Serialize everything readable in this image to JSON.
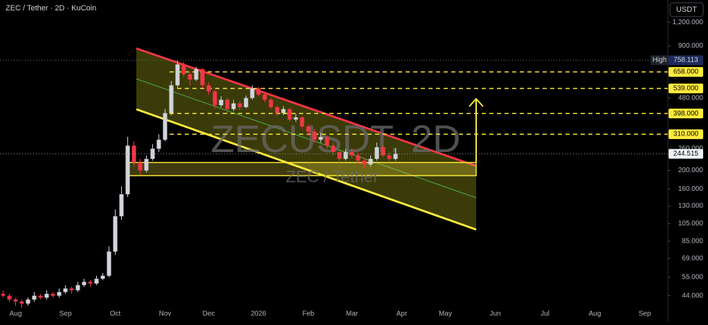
{
  "chart_data": {
    "type": "candlestick",
    "title": "ZEC / Tether · 2D · KuCoin",
    "watermark": "ZECUSDT, 2D",
    "watermark_sub": "ZEC / Tether",
    "currency": "USDT",
    "high_label": "High",
    "log_scale": true,
    "grid": false,
    "up_color": "#d1d4dc",
    "down_color": "#f23645",
    "level_color": "#ffeb3b",
    "categories": [
      null,
      null,
      "Aug",
      null,
      null,
      null,
      null,
      null,
      null,
      null,
      "Sep",
      null,
      null,
      null,
      null,
      null,
      null,
      null,
      "Oct",
      null,
      null,
      null,
      null,
      null,
      null,
      null,
      "Nov",
      null,
      null,
      null,
      null,
      null,
      null,
      "Dec",
      null,
      null,
      null,
      null,
      null,
      null,
      null,
      "2026",
      null,
      null,
      null,
      null,
      null,
      null,
      null,
      "Feb",
      null,
      null,
      null,
      null,
      null,
      null,
      "Mar",
      null,
      null,
      null,
      null,
      null,
      null,
      null,
      "Apr",
      null,
      null,
      null,
      null,
      null,
      null,
      "May",
      null,
      null,
      null,
      null,
      null,
      null,
      null,
      "Jun",
      null,
      null,
      null,
      null,
      null,
      null,
      null,
      "Jul",
      null,
      null,
      null,
      null,
      null,
      null,
      null,
      "Aug",
      null,
      null,
      null,
      null,
      null,
      null,
      null,
      "Sep",
      null,
      null,
      null
    ],
    "open": [
      45,
      44,
      42,
      41,
      40,
      42,
      44,
      43,
      45,
      44,
      46,
      48,
      47,
      50,
      52,
      51,
      54,
      56,
      75,
      115,
      150,
      270,
      220,
      200,
      230,
      260,
      290,
      400,
      560,
      720,
      640,
      600,
      680,
      560,
      520,
      440,
      470,
      420,
      450,
      430,
      480,
      540,
      500,
      470,
      430,
      400,
      420,
      370,
      380,
      340,
      320,
      290,
      300,
      270,
      250,
      230,
      250,
      240,
      225,
      215,
      230,
      265,
      240,
      230,
      null,
      null,
      null,
      null,
      null,
      null,
      null,
      null,
      null,
      null,
      null,
      null,
      null,
      null,
      null,
      null,
      null,
      null,
      null,
      null,
      null,
      null,
      null,
      null,
      null,
      null,
      null,
      null,
      null,
      null,
      null,
      null,
      null,
      null,
      null,
      null,
      null,
      null,
      null,
      null,
      null,
      null,
      null
    ],
    "high": [
      47,
      45,
      43,
      42,
      43,
      46,
      45,
      47,
      46,
      48,
      50,
      49,
      52,
      54,
      53,
      56,
      58,
      80,
      125,
      165,
      300,
      285,
      230,
      240,
      275,
      310,
      420,
      590,
      758.113,
      740,
      660,
      700,
      690,
      580,
      530,
      490,
      480,
      470,
      460,
      495,
      560,
      550,
      510,
      480,
      440,
      435,
      425,
      395,
      385,
      350,
      330,
      315,
      305,
      280,
      255,
      260,
      262,
      248,
      232,
      240,
      280,
      270,
      248,
      262,
      null,
      null,
      null,
      null,
      null,
      null,
      null,
      null,
      null,
      null,
      null,
      null,
      null,
      null,
      null,
      null,
      null,
      null,
      null,
      null,
      null,
      null,
      null,
      null,
      null,
      null,
      null,
      null,
      null,
      null,
      null,
      null,
      null,
      null,
      null,
      null,
      null,
      null,
      null,
      null,
      null,
      null,
      null
    ],
    "low": [
      43,
      41,
      39,
      38,
      39,
      41,
      42,
      42,
      43,
      43,
      45,
      45,
      46,
      49,
      49,
      50,
      53,
      55,
      72,
      110,
      145,
      210,
      190,
      195,
      225,
      250,
      285,
      390,
      545,
      620,
      560,
      590,
      540,
      500,
      420,
      430,
      400,
      410,
      415,
      425,
      470,
      490,
      455,
      420,
      385,
      390,
      360,
      360,
      330,
      305,
      280,
      280,
      260,
      240,
      205,
      225,
      232,
      215,
      205,
      210,
      225,
      235,
      220,
      225,
      null,
      null,
      null,
      null,
      null,
      null,
      null,
      null,
      null,
      null,
      null,
      null,
      null,
      null,
      null,
      null,
      null,
      null,
      null,
      null,
      null,
      null,
      null,
      null,
      null,
      null,
      null,
      null,
      null,
      null,
      null,
      null,
      null,
      null,
      null,
      null,
      null,
      null,
      null,
      null,
      null,
      null,
      null
    ],
    "close": [
      44,
      42,
      41,
      40,
      42,
      44,
      43,
      45,
      44,
      46,
      48,
      47,
      50,
      52,
      51,
      54,
      56,
      75,
      115,
      150,
      270,
      220,
      200,
      230,
      260,
      290,
      400,
      560,
      720,
      640,
      600,
      680,
      560,
      520,
      440,
      470,
      420,
      450,
      430,
      480,
      540,
      500,
      470,
      430,
      400,
      420,
      370,
      380,
      340,
      320,
      290,
      300,
      270,
      250,
      230,
      250,
      240,
      225,
      215,
      230,
      265,
      240,
      230,
      244.515,
      null,
      null,
      null,
      null,
      null,
      null,
      null,
      null,
      null,
      null,
      null,
      null,
      null,
      null,
      null,
      null,
      null,
      null,
      null,
      null,
      null,
      null,
      null,
      null,
      null,
      null,
      null,
      null,
      null,
      null,
      null,
      null,
      null,
      null,
      null,
      null,
      null,
      null,
      null,
      null,
      null,
      null,
      null
    ],
    "ylim": [
      35,
      1570
    ],
    "yticks": [
      {
        "value": 44,
        "label": "44.000"
      },
      {
        "value": 55,
        "label": "55.000"
      },
      {
        "value": 69,
        "label": "69.000"
      },
      {
        "value": 85,
        "label": "85.000"
      },
      {
        "value": 105,
        "label": "105.000"
      },
      {
        "value": 130,
        "label": "130.000"
      },
      {
        "value": 160,
        "label": "160.000"
      },
      {
        "value": 200,
        "label": "200.000"
      },
      {
        "value": 260,
        "label": "260.000"
      },
      {
        "value": 480,
        "label": "480.000"
      },
      {
        "value": 900,
        "label": "900.000"
      },
      {
        "value": 1200,
        "label": "1,200.000"
      }
    ],
    "levels": [
      {
        "value": 658,
        "label": "658.000"
      },
      {
        "value": 539,
        "label": "539.000"
      },
      {
        "value": 398,
        "label": "398.000"
      },
      {
        "value": 310,
        "label": "310.000"
      }
    ]
  }
}
